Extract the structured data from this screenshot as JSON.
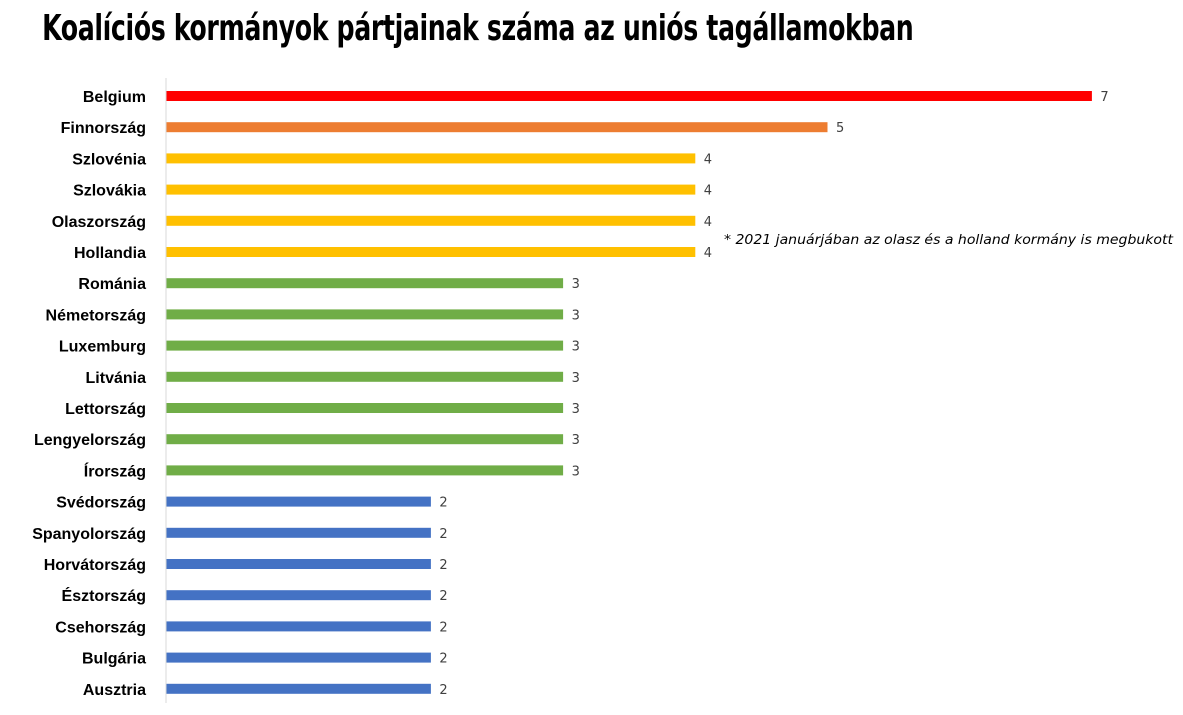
{
  "chart_data": {
    "type": "bar",
    "orientation": "horizontal",
    "title": "Koalíciós kormányok pártjainak száma az uniós tagállamokban",
    "annotation": "* 2021 januárjában az olasz és a holland kormány is megbukott",
    "categories": [
      "Belgium",
      "Finnország",
      "Szlovénia",
      "Szlovákia",
      "Olaszország",
      "Hollandia",
      "Románia",
      "Németország",
      "Luxemburg",
      "Litvánia",
      "Lettország",
      "Lengyelország",
      "Írország",
      "Svédország",
      "Spanyolország",
      "Horvátország",
      "Észtország",
      "Csehország",
      "Bulgária",
      "Ausztria"
    ],
    "values": [
      7,
      5,
      4,
      4,
      4,
      4,
      3,
      3,
      3,
      3,
      3,
      3,
      3,
      2,
      2,
      2,
      2,
      2,
      2,
      2
    ],
    "data_labels": [
      "7",
      "5",
      "4",
      "4",
      "4",
      "4",
      "3",
      "3",
      "3",
      "3",
      "3",
      "3",
      "3",
      "2",
      "2",
      "2",
      "2",
      "2",
      "2",
      "2"
    ],
    "colors": {
      "7": "#ff0000",
      "5": "#ed7d31",
      "4": "#ffc000",
      "3": "#70ad47",
      "2": "#4472c4"
    },
    "axis_color": "#d9d9d9",
    "xlim": [
      0,
      7
    ],
    "grid": false,
    "legend": "none"
  }
}
